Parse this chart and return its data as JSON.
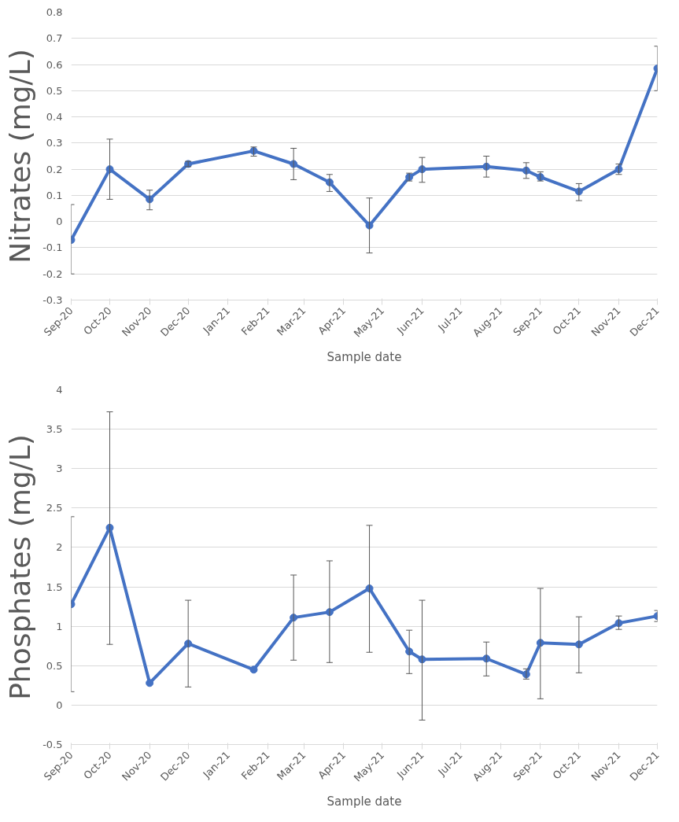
{
  "chart_data": [
    {
      "type": "line",
      "xlabel": "Sample date",
      "ylabel": "Nitrates (mg/L)",
      "marker": "circle",
      "line_style": "solid",
      "grid": "y",
      "x": [
        "2020-09-01",
        "2020-10-01",
        "2020-11-01",
        "2020-12-01",
        "2021-01-21",
        "2021-02-21",
        "2021-03-21",
        "2021-04-21",
        "2021-05-22",
        "2021-06-01",
        "2021-07-21",
        "2021-08-21",
        "2021-09-01",
        "2021-10-01",
        "2021-11-01",
        "2021-12-01"
      ],
      "series": [
        {
          "color": "#4472c4",
          "values": [
            -0.07,
            0.2,
            0.085,
            0.22,
            0.27,
            0.22,
            0.15,
            -0.015,
            0.17,
            0.2,
            0.21,
            0.195,
            0.17,
            0.115,
            0.2,
            0.585
          ],
          "errors": [
            [
              -0.2,
              0.065
            ],
            [
              0.085,
              0.315
            ],
            [
              0.045,
              0.12
            ],
            [
              0.21,
              0.23
            ],
            [
              0.25,
              0.285
            ],
            [
              0.16,
              0.28
            ],
            [
              0.115,
              0.18
            ],
            [
              -0.12,
              0.09
            ],
            [
              0.155,
              0.185
            ],
            [
              0.15,
              0.245
            ],
            [
              0.17,
              0.25
            ],
            [
              0.165,
              0.225
            ],
            [
              0.155,
              0.19
            ],
            [
              0.08,
              0.145
            ],
            [
              0.18,
              0.22
            ],
            [
              0.5,
              0.67
            ]
          ]
        }
      ],
      "ylim": [
        -0.3,
        0.8
      ],
      "yticks": [
        -0.3,
        -0.2,
        -0.1,
        0,
        0.1,
        0.2,
        0.3,
        0.4,
        0.5,
        0.6,
        0.7,
        0.8
      ],
      "xlim": [
        "2020-09-01",
        "2021-12-01"
      ],
      "xticks": [
        {
          "value": "2020-09-01",
          "label": "Sep-20"
        },
        {
          "value": "2020-10-01",
          "label": "Oct-20"
        },
        {
          "value": "2020-11-01",
          "label": "Nov-20"
        },
        {
          "value": "2020-12-01",
          "label": "Dec-20"
        },
        {
          "value": "2021-01-01",
          "label": "Jan-21"
        },
        {
          "value": "2021-02-01",
          "label": "Feb-21"
        },
        {
          "value": "2021-03-01",
          "label": "Mar-21"
        },
        {
          "value": "2021-04-01",
          "label": "Apr-21"
        },
        {
          "value": "2021-05-01",
          "label": "May-21"
        },
        {
          "value": "2021-06-01",
          "label": "Jun-21"
        },
        {
          "value": "2021-07-01",
          "label": "Jul-21"
        },
        {
          "value": "2021-08-01",
          "label": "Aug-21"
        },
        {
          "value": "2021-09-01",
          "label": "Sep-21"
        },
        {
          "value": "2021-10-01",
          "label": "Oct-21"
        },
        {
          "value": "2021-11-01",
          "label": "Nov-21"
        },
        {
          "value": "2021-12-01",
          "label": "Dec-21"
        }
      ]
    },
    {
      "type": "line",
      "xlabel": "Sample date",
      "ylabel": "Phosphates (mg/L)",
      "marker": "circle",
      "line_style": "solid",
      "grid": "y",
      "x": [
        "2020-09-01",
        "2020-10-01",
        "2020-11-01",
        "2020-12-01",
        "2021-01-21",
        "2021-02-21",
        "2021-03-21",
        "2021-04-21",
        "2021-05-22",
        "2021-06-01",
        "2021-07-21",
        "2021-08-21",
        "2021-09-01",
        "2021-10-01",
        "2021-11-01",
        "2021-12-01"
      ],
      "series": [
        {
          "color": "#4472c4",
          "values": [
            1.28,
            2.25,
            0.28,
            0.78,
            0.45,
            1.11,
            1.18,
            1.48,
            0.68,
            0.58,
            0.59,
            0.39,
            0.79,
            0.77,
            1.04,
            1.13
          ],
          "errors": [
            [
              0.17,
              2.39
            ],
            [
              0.77,
              3.72
            ],
            null,
            [
              0.23,
              1.33
            ],
            null,
            [
              0.57,
              1.65
            ],
            [
              0.54,
              1.83
            ],
            [
              0.67,
              2.28
            ],
            [
              0.4,
              0.95
            ],
            [
              -0.19,
              1.33
            ],
            [
              0.37,
              0.8
            ],
            [
              0.33,
              0.46
            ],
            [
              0.08,
              1.48
            ],
            [
              0.41,
              1.12
            ],
            [
              0.96,
              1.13
            ],
            [
              1.06,
              1.2
            ]
          ]
        }
      ],
      "ylim": [
        -0.5,
        4
      ],
      "yticks": [
        -0.5,
        0,
        0.5,
        1,
        1.5,
        2,
        2.5,
        3,
        3.5,
        4
      ],
      "xlim": [
        "2020-09-01",
        "2021-12-01"
      ],
      "xticks": [
        {
          "value": "2020-09-01",
          "label": "Sep-20"
        },
        {
          "value": "2020-10-01",
          "label": "Oct-20"
        },
        {
          "value": "2020-11-01",
          "label": "Nov-20"
        },
        {
          "value": "2020-12-01",
          "label": "Dec-20"
        },
        {
          "value": "2021-01-01",
          "label": "Jan-21"
        },
        {
          "value": "2021-02-01",
          "label": "Feb-21"
        },
        {
          "value": "2021-03-01",
          "label": "Mar-21"
        },
        {
          "value": "2021-04-01",
          "label": "Apr-21"
        },
        {
          "value": "2021-05-01",
          "label": "May-21"
        },
        {
          "value": "2021-06-01",
          "label": "Jun-21"
        },
        {
          "value": "2021-07-01",
          "label": "Jul-21"
        },
        {
          "value": "2021-08-01",
          "label": "Aug-21"
        },
        {
          "value": "2021-09-01",
          "label": "Sep-21"
        },
        {
          "value": "2021-10-01",
          "label": "Oct-21"
        },
        {
          "value": "2021-11-01",
          "label": "Nov-21"
        },
        {
          "value": "2021-12-01",
          "label": "Dec-21"
        }
      ]
    }
  ]
}
